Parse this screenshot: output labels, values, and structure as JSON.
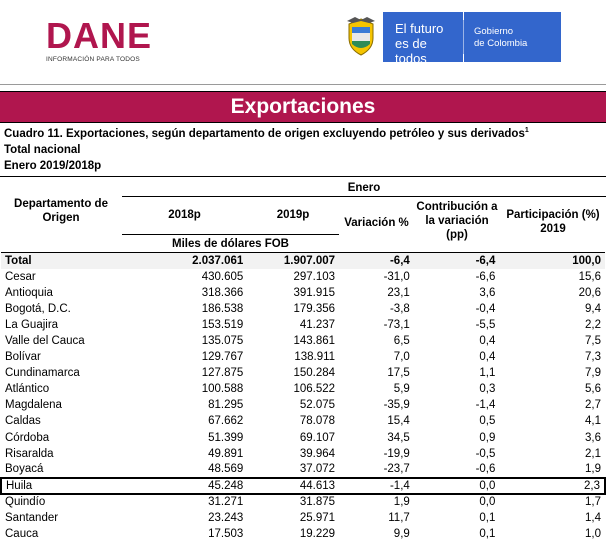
{
  "header": {
    "dane_logo": "DANE",
    "dane_tagline": "INFORMACIÓN PARA TODOS",
    "gov_main_line1": "El futuro",
    "gov_main_line2": "es de todos",
    "gov_side_line1": "Gobierno",
    "gov_side_line2": "de Colombia"
  },
  "banner": {
    "title": "Exportaciones"
  },
  "caption": {
    "title": "Cuadro 11. Exportaciones, según departamento de origen excluyendo petróleo y sus derivados",
    "footnote": "1",
    "subtitle": "Total nacional",
    "period": "Enero 2019/2018p"
  },
  "table": {
    "group_header": "Enero",
    "col_department": "Departamento de Origen",
    "col_2018": "2018p",
    "col_2019": "2019p",
    "col_variation": "Variación %",
    "col_contribution": "Contribución a la variación (pp)",
    "col_participation": "Participación (%) 2019",
    "units": "Miles de dólares FOB",
    "highlighted_row": "Huila",
    "rows": [
      {
        "dept": "Total",
        "y2018": "2.037.061",
        "y2019": "1.907.007",
        "var": "-6,4",
        "contrib": "-6,4",
        "part": "100,0"
      },
      {
        "dept": "Cesar",
        "y2018": "430.605",
        "y2019": "297.103",
        "var": "-31,0",
        "contrib": "-6,6",
        "part": "15,6"
      },
      {
        "dept": "Antioquia",
        "y2018": "318.366",
        "y2019": "391.915",
        "var": "23,1",
        "contrib": "3,6",
        "part": "20,6"
      },
      {
        "dept": "Bogotá, D.C.",
        "y2018": "186.538",
        "y2019": "179.356",
        "var": "-3,8",
        "contrib": "-0,4",
        "part": "9,4"
      },
      {
        "dept": "La Guajira",
        "y2018": "153.519",
        "y2019": "41.237",
        "var": "-73,1",
        "contrib": "-5,5",
        "part": "2,2"
      },
      {
        "dept": "Valle del Cauca",
        "y2018": "135.075",
        "y2019": "143.861",
        "var": "6,5",
        "contrib": "0,4",
        "part": "7,5"
      },
      {
        "dept": "Bolívar",
        "y2018": "129.767",
        "y2019": "138.911",
        "var": "7,0",
        "contrib": "0,4",
        "part": "7,3"
      },
      {
        "dept": "Cundinamarca",
        "y2018": "127.875",
        "y2019": "150.284",
        "var": "17,5",
        "contrib": "1,1",
        "part": "7,9"
      },
      {
        "dept": "Atlántico",
        "y2018": "100.588",
        "y2019": "106.522",
        "var": "5,9",
        "contrib": "0,3",
        "part": "5,6"
      },
      {
        "dept": "Magdalena",
        "y2018": "81.295",
        "y2019": "52.075",
        "var": "-35,9",
        "contrib": "-1,4",
        "part": "2,7"
      },
      {
        "dept": "Caldas",
        "y2018": "67.662",
        "y2019": "78.078",
        "var": "15,4",
        "contrib": "0,5",
        "part": "4,1"
      },
      {
        "dept": "Córdoba",
        "y2018": "51.399",
        "y2019": "69.107",
        "var": "34,5",
        "contrib": "0,9",
        "part": "3,6"
      },
      {
        "dept": "Risaralda",
        "y2018": "49.891",
        "y2019": "39.964",
        "var": "-19,9",
        "contrib": "-0,5",
        "part": "2,1"
      },
      {
        "dept": "Boyacá",
        "y2018": "48.569",
        "y2019": "37.072",
        "var": "-23,7",
        "contrib": "-0,6",
        "part": "1,9"
      },
      {
        "dept": "Huila",
        "y2018": "45.248",
        "y2019": "44.613",
        "var": "-1,4",
        "contrib": "0,0",
        "part": "2,3"
      },
      {
        "dept": "Quindío",
        "y2018": "31.271",
        "y2019": "31.875",
        "var": "1,9",
        "contrib": "0,0",
        "part": "1,7"
      },
      {
        "dept": "Santander",
        "y2018": "23.243",
        "y2019": "25.971",
        "var": "11,7",
        "contrib": "0,1",
        "part": "1,4"
      },
      {
        "dept": "Cauca",
        "y2018": "17.503",
        "y2019": "19.229",
        "var": "9,9",
        "contrib": "0,1",
        "part": "1,0"
      }
    ]
  },
  "colors": {
    "brand_magenta": "#b0164e",
    "gov_blue": "#3366cc",
    "total_row_bg": "#f2f2f2"
  }
}
